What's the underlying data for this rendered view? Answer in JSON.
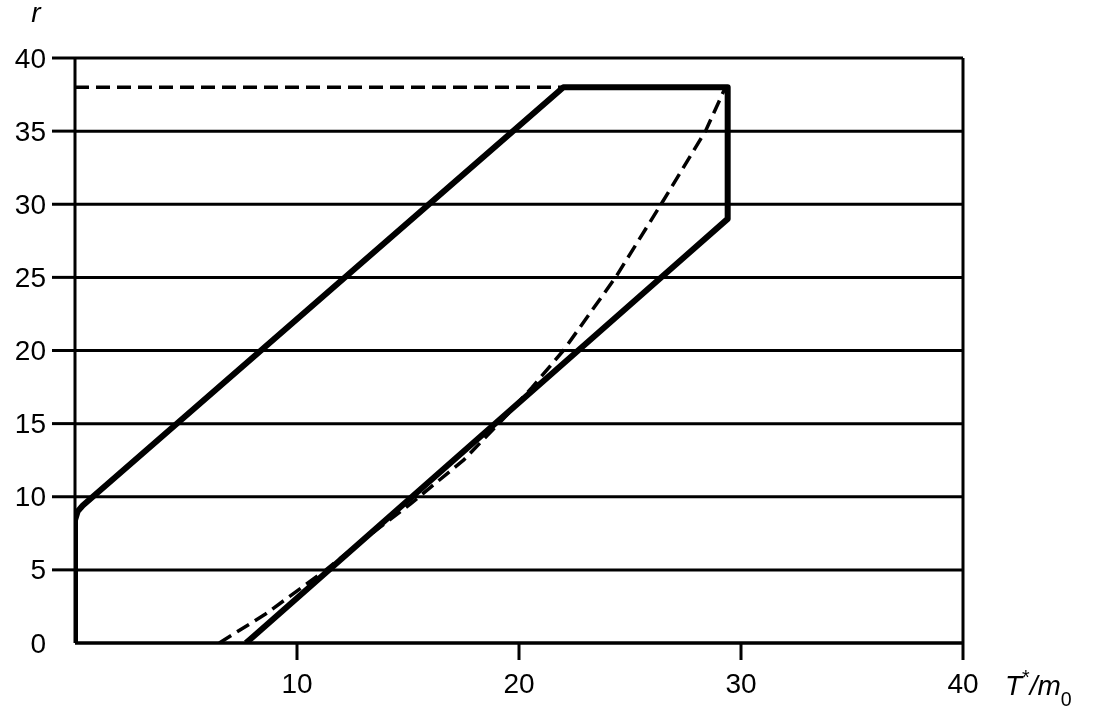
{
  "chart_data": {
    "type": "line",
    "xlabel": "T$^{*}$/m$_{0}$",
    "ylabel": "r",
    "xlim": [
      0,
      40
    ],
    "xticks": [
      {
        "value": 0,
        "label": null
      },
      10,
      20,
      30,
      40
    ],
    "ylim": [
      0,
      40
    ],
    "yticks": [
      0,
      5,
      10,
      15,
      20,
      25,
      30,
      35,
      40
    ],
    "grid": "y",
    "marker": "none",
    "series": [
      {
        "color": "#000000",
        "line_style": "solid",
        "x": [
          0,
          0,
          0.12,
          0.35,
          22,
          29.4,
          29.4,
          7.7
        ],
        "values": [
          0,
          8.4,
          9.0,
          9.4,
          38,
          38,
          29,
          0
        ]
      },
      {
        "color": "#000000",
        "line_style": "dashed",
        "x": [
          6.5,
          8.6,
          11.3,
          13.2,
          15.1,
          17.5,
          19.4,
          20.6,
          22.0,
          24.35,
          26.4,
          28.4,
          29.3
        ],
        "values": [
          0,
          2,
          5,
          7.3,
          9.5,
          12.5,
          15.5,
          17.5,
          20,
          25,
          30,
          35,
          38
        ]
      },
      {
        "color": "#000000",
        "line_style": "dashed",
        "x": [
          0,
          22
        ],
        "values": [
          38,
          38
        ]
      }
    ]
  }
}
